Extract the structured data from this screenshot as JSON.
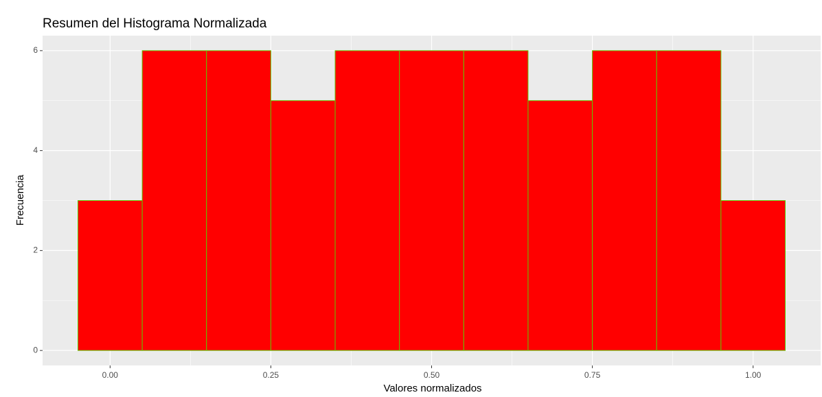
{
  "chart_data": {
    "type": "histogram",
    "title": "Resumen del Histograma Normalizada",
    "x_label": "Valores normalizados",
    "y_label": "Frecuencia",
    "bins": [
      -0.05,
      0.05,
      0.15,
      0.25,
      0.35,
      0.45,
      0.55,
      0.65,
      0.75,
      0.85,
      0.95,
      1.05
    ],
    "values": [
      3,
      6,
      6,
      5,
      6,
      6,
      6,
      5,
      6,
      6,
      3
    ],
    "color": "#ff0000",
    "edge_color": "#5fc800",
    "xlim": [
      -0.105,
      1.105
    ],
    "ylim": [
      -0.3,
      6.3
    ],
    "xticks": [
      {
        "value": 0,
        "label": "0.00"
      },
      {
        "value": 0.25,
        "label": "0.25"
      },
      {
        "value": 0.5,
        "label": "0.50"
      },
      {
        "value": 0.75,
        "label": "0.75"
      },
      {
        "value": 1,
        "label": "1.00"
      }
    ],
    "yticks": [
      0,
      2,
      4,
      6
    ],
    "x_minor_grid": [
      0.125,
      0.375,
      0.625,
      0.875
    ],
    "y_minor_grid": [
      1,
      3,
      5
    ],
    "grid": true
  }
}
